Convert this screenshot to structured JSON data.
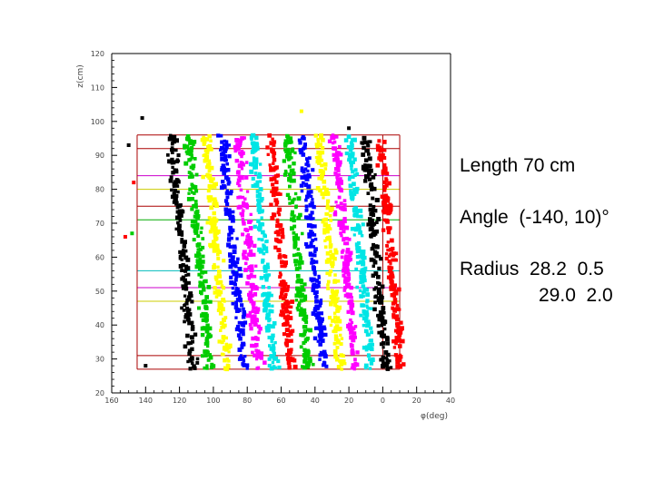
{
  "chart_data": {
    "type": "scatter",
    "xlabel": "φ(deg)",
    "ylabel": "z(cm)",
    "xlim": [
      -160,
      40
    ],
    "ylim": [
      20,
      120
    ],
    "x_reversed": true,
    "x_ticks": [
      -160,
      -140,
      -120,
      -100,
      -80,
      -60,
      -40,
      -20,
      0,
      20,
      40
    ],
    "x_tick_labels": [
      "160",
      "140",
      "120",
      "100",
      "80",
      "60",
      "40",
      "20",
      "0",
      "20",
      "40"
    ],
    "y_ticks": [
      20,
      30,
      40,
      50,
      60,
      70,
      80,
      90,
      100,
      110,
      120
    ],
    "y_tick_labels": [
      "20",
      "30",
      "40",
      "50",
      "60",
      "70",
      "80",
      "90",
      "100",
      "110",
      "120"
    ],
    "grid": false,
    "series": [
      {
        "color": "#000000",
        "phi_center": -118,
        "z_range": [
          27,
          96
        ]
      },
      {
        "color": "#00cc00",
        "phi_center": -108,
        "z_range": [
          27,
          96
        ]
      },
      {
        "color": "#ffff00",
        "phi_center": -98,
        "z_range": [
          27,
          96
        ]
      },
      {
        "color": "#0000ff",
        "phi_center": -88,
        "z_range": [
          27,
          96
        ]
      },
      {
        "color": "#ff00ff",
        "phi_center": -79,
        "z_range": [
          27,
          96
        ]
      },
      {
        "color": "#00e5e5",
        "phi_center": -70,
        "z_range": [
          27,
          96
        ]
      },
      {
        "color": "#ff0000",
        "phi_center": -60,
        "z_range": [
          27,
          96
        ]
      },
      {
        "color": "#00cc00",
        "phi_center": -50,
        "z_range": [
          27,
          96
        ]
      },
      {
        "color": "#0000ff",
        "phi_center": -41,
        "z_range": [
          27,
          96
        ]
      },
      {
        "color": "#ffff00",
        "phi_center": -31,
        "z_range": [
          27,
          96
        ]
      },
      {
        "color": "#ff00ff",
        "phi_center": -22,
        "z_range": [
          27,
          96
        ]
      },
      {
        "color": "#00e5e5",
        "phi_center": -13,
        "z_range": [
          27,
          96
        ]
      },
      {
        "color": "#000000",
        "phi_center": -4,
        "z_range": [
          27,
          96
        ]
      },
      {
        "color": "#ff0000",
        "phi_center": 5,
        "z_range": [
          27,
          96
        ]
      }
    ],
    "reference_lines": [
      {
        "color": "#aa0000",
        "z": 96,
        "phi_range": [
          -145,
          10
        ]
      },
      {
        "color": "#aa0000",
        "z": 92,
        "phi_range": [
          -145,
          10
        ]
      },
      {
        "color": "#cc00cc",
        "z": 84,
        "phi_range": [
          -145,
          10
        ]
      },
      {
        "color": "#cccc00",
        "z": 80,
        "phi_range": [
          -145,
          10
        ]
      },
      {
        "color": "#aa0000",
        "z": 75,
        "phi_range": [
          -145,
          10
        ]
      },
      {
        "color": "#00aa00",
        "z": 71,
        "phi_range": [
          -145,
          10
        ]
      },
      {
        "color": "#00bbbb",
        "z": 56,
        "phi_range": [
          -145,
          10
        ]
      },
      {
        "color": "#cc00cc",
        "z": 51,
        "phi_range": [
          -145,
          10
        ]
      },
      {
        "color": "#cccc00",
        "z": 47,
        "phi_range": [
          -145,
          10
        ]
      },
      {
        "color": "#aa0000",
        "z": 31,
        "phi_range": [
          -145,
          10
        ]
      },
      {
        "color": "#aa0000",
        "z": 27,
        "phi_range": [
          -145,
          10
        ]
      }
    ]
  },
  "annotations": {
    "length": "Length 70 cm",
    "angle": "Angle  (-140, 10)°",
    "radius_line1": "Radius  28.2  0.5",
    "radius_line2": "29.0  2.0"
  }
}
